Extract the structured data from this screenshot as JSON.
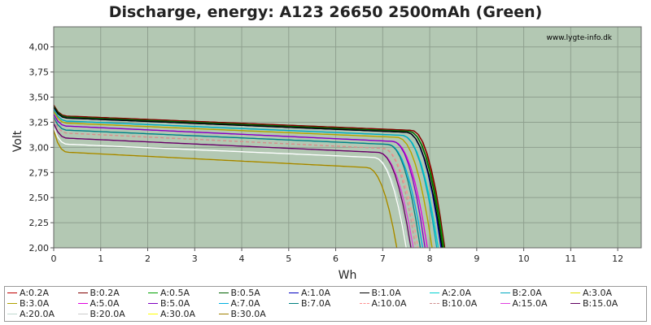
{
  "chart_data": {
    "type": "line",
    "title": "Discharge, energy: A123 26650 2500mAh (Green)",
    "watermark": "www.lygte-info.dk",
    "xlabel": "Wh",
    "ylabel": "Volt",
    "xlim": [
      0,
      12.5
    ],
    "ylim": [
      2.0,
      4.2
    ],
    "xticks": [
      "0",
      "1",
      "2",
      "3",
      "4",
      "5",
      "6",
      "7",
      "8",
      "9",
      "10",
      "11",
      "12"
    ],
    "yticks": [
      "2,00",
      "2,25",
      "2,50",
      "2,75",
      "3,00",
      "3,25",
      "3,50",
      "3,75",
      "4,00"
    ],
    "grid": true,
    "plot_background": "#b3c8b3",
    "legend_position": "bottom",
    "series": [
      {
        "name": "A:0.2A",
        "color": "#c00000",
        "v0": 3.42,
        "plateau": 3.31,
        "end_plateau": 3.17,
        "knee_wh": 7.6,
        "end_wh": 8.3,
        "dash": false
      },
      {
        "name": "B:0.2A",
        "color": "#800000",
        "v0": 3.42,
        "plateau": 3.31,
        "end_plateau": 3.17,
        "knee_wh": 7.6,
        "end_wh": 8.32,
        "dash": false
      },
      {
        "name": "A:0.5A",
        "color": "#00a000",
        "v0": 3.41,
        "plateau": 3.3,
        "end_plateau": 3.16,
        "knee_wh": 7.55,
        "end_wh": 8.3,
        "dash": false
      },
      {
        "name": "B:0.5A",
        "color": "#006000",
        "v0": 3.41,
        "plateau": 3.3,
        "end_plateau": 3.16,
        "knee_wh": 7.55,
        "end_wh": 8.28,
        "dash": false
      },
      {
        "name": "A:1.0A",
        "color": "#0000c0",
        "v0": 3.4,
        "plateau": 3.29,
        "end_plateau": 3.15,
        "knee_wh": 7.5,
        "end_wh": 8.24,
        "dash": false
      },
      {
        "name": "B:1.0A",
        "color": "#000000",
        "v0": 3.4,
        "plateau": 3.29,
        "end_plateau": 3.15,
        "knee_wh": 7.5,
        "end_wh": 8.26,
        "dash": false
      },
      {
        "name": "A:2.0A",
        "color": "#00d0d0",
        "v0": 3.38,
        "plateau": 3.26,
        "end_plateau": 3.12,
        "knee_wh": 7.4,
        "end_wh": 8.18,
        "dash": false
      },
      {
        "name": "B:2.0A",
        "color": "#00a8c0",
        "v0": 3.38,
        "plateau": 3.26,
        "end_plateau": 3.12,
        "knee_wh": 7.4,
        "end_wh": 8.15,
        "dash": false
      },
      {
        "name": "A:3.0A",
        "color": "#e0e000",
        "v0": 3.36,
        "plateau": 3.24,
        "end_plateau": 3.1,
        "knee_wh": 7.3,
        "end_wh": 8.05,
        "dash": false
      },
      {
        "name": "B:3.0A",
        "color": "#b0a000",
        "v0": 3.36,
        "plateau": 3.24,
        "end_plateau": 3.1,
        "knee_wh": 7.3,
        "end_wh": 8.05,
        "dash": false
      },
      {
        "name": "A:5.0A",
        "color": "#e000e0",
        "v0": 3.33,
        "plateau": 3.21,
        "end_plateau": 3.06,
        "knee_wh": 7.2,
        "end_wh": 7.95,
        "dash": false
      },
      {
        "name": "B:5.0A",
        "color": "#8000c0",
        "v0": 3.33,
        "plateau": 3.21,
        "end_plateau": 3.06,
        "knee_wh": 7.2,
        "end_wh": 7.9,
        "dash": false
      },
      {
        "name": "A:7.0A",
        "color": "#00b0e0",
        "v0": 3.3,
        "plateau": 3.17,
        "end_plateau": 3.03,
        "knee_wh": 7.1,
        "end_wh": 7.85,
        "dash": false
      },
      {
        "name": "B:7.0A",
        "color": "#008080",
        "v0": 3.3,
        "plateau": 3.17,
        "end_plateau": 3.03,
        "knee_wh": 7.1,
        "end_wh": 7.8,
        "dash": false
      },
      {
        "name": "A:10.0A",
        "color": "#ff9090",
        "v0": 3.28,
        "plateau": 3.14,
        "end_plateau": 2.99,
        "knee_wh": 7.0,
        "end_wh": 7.75,
        "dash": true
      },
      {
        "name": "B:10.0A",
        "color": "#d09090",
        "v0": 3.28,
        "plateau": 3.14,
        "end_plateau": 2.99,
        "knee_wh": 7.0,
        "end_wh": 7.7,
        "dash": true
      },
      {
        "name": "A:15.0A",
        "color": "#e040e0",
        "v0": 3.24,
        "plateau": 3.09,
        "end_plateau": 2.95,
        "knee_wh": 6.9,
        "end_wh": 7.65,
        "dash": false
      },
      {
        "name": "B:15.0A",
        "color": "#600060",
        "v0": 3.24,
        "plateau": 3.09,
        "end_plateau": 2.95,
        "knee_wh": 6.9,
        "end_wh": 7.6,
        "dash": false
      },
      {
        "name": "A:20.0A",
        "color": "#c0d8d0",
        "v0": 3.2,
        "plateau": 3.03,
        "end_plateau": 2.9,
        "knee_wh": 6.8,
        "end_wh": 7.55,
        "dash": false
      },
      {
        "name": "B:20.0A",
        "color": "#ffffff",
        "v0": 3.2,
        "plateau": 3.03,
        "end_plateau": 2.9,
        "knee_wh": 6.8,
        "end_wh": 7.5,
        "dash": false
      },
      {
        "name": "A:30.0A",
        "color": "#ffff00",
        "v0": 3.17,
        "plateau": 2.95,
        "end_plateau": 2.8,
        "knee_wh": 6.65,
        "end_wh": 7.3,
        "dash": false
      },
      {
        "name": "B:30.0A",
        "color": "#a08000",
        "v0": 3.17,
        "plateau": 2.95,
        "end_plateau": 2.8,
        "knee_wh": 6.65,
        "end_wh": 7.3,
        "dash": false
      }
    ]
  }
}
